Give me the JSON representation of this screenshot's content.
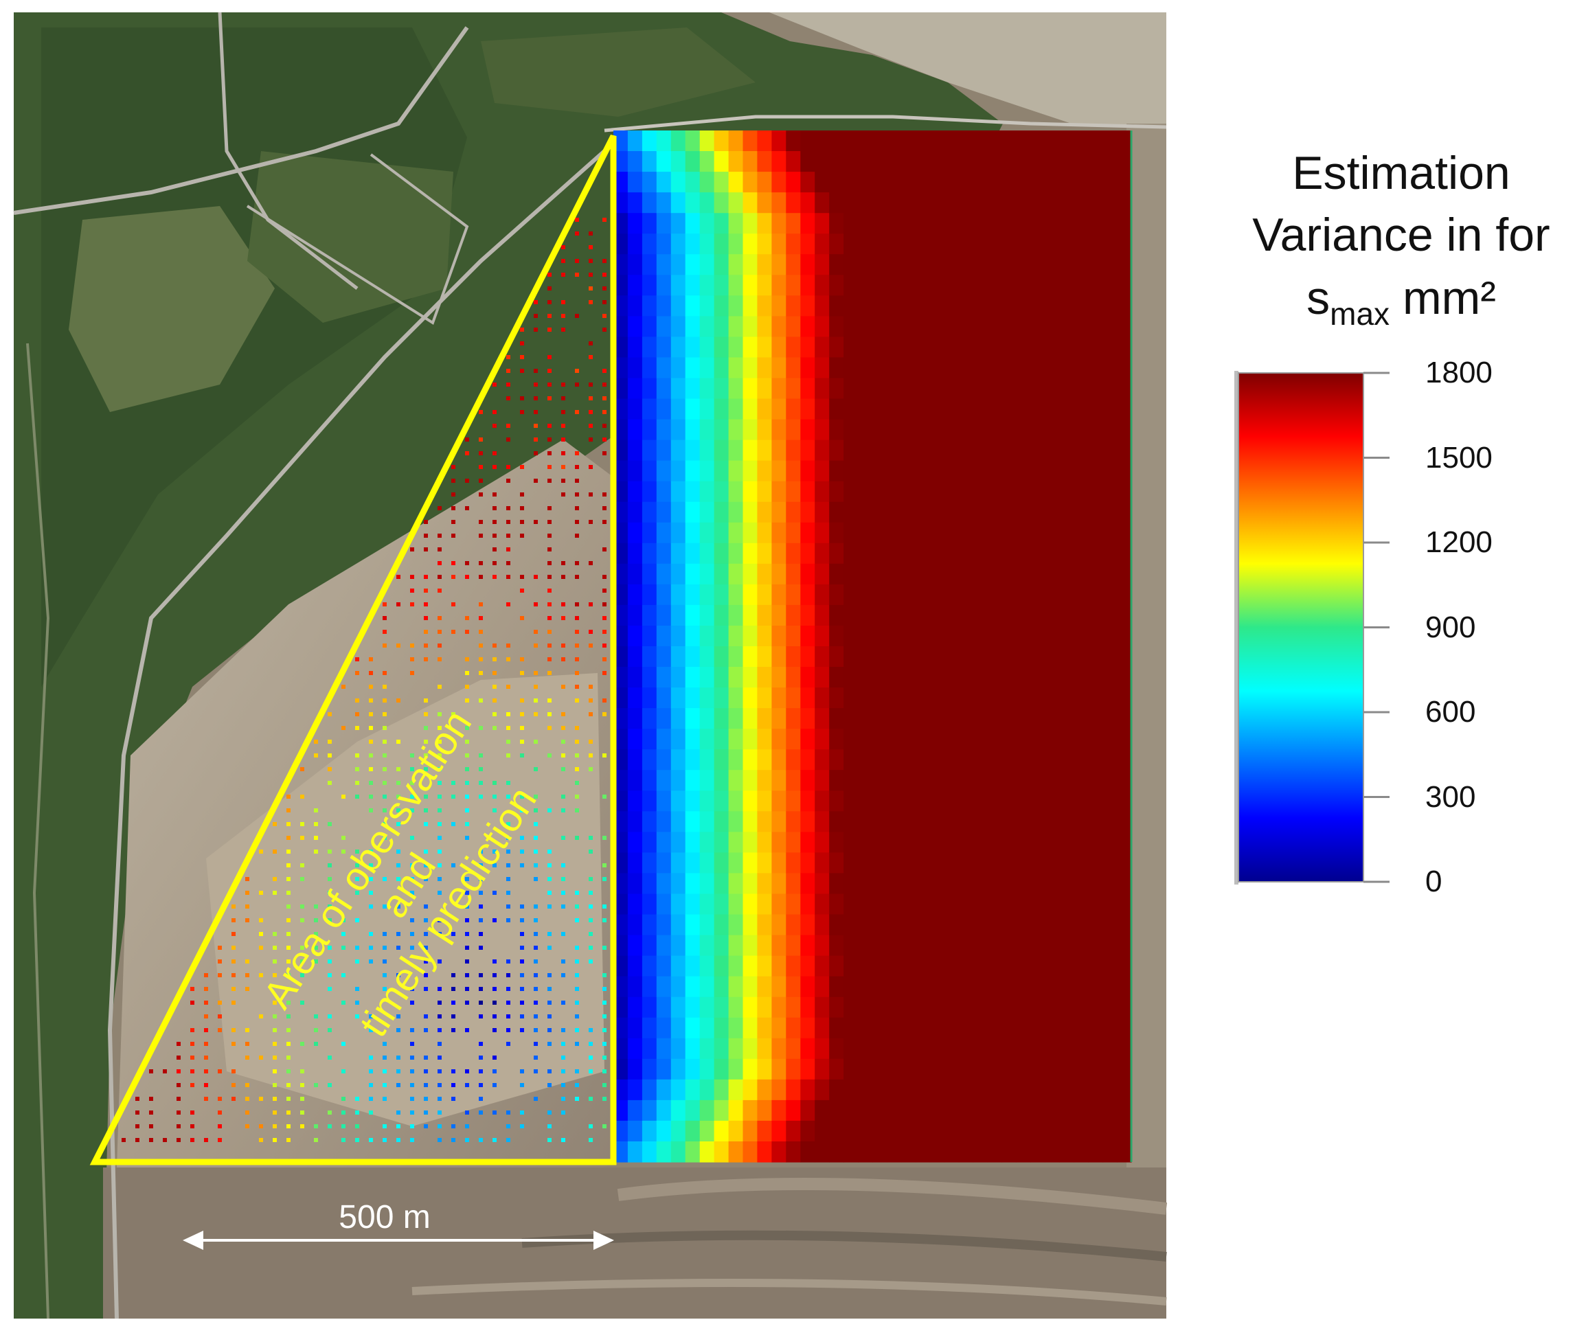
{
  "figure": {
    "annotation_line1": "Area of obersvation",
    "annotation_line2": "and",
    "annotation_line3": "timely prediction",
    "scale_bar_label": "500 m"
  },
  "legend": {
    "title_line1": "Estimation",
    "title_line2": "Variance in for",
    "title_line3_symbol": "s",
    "title_line3_subscript": "max",
    "title_line3_unit": "mm²",
    "ticks": [
      {
        "value": 1800,
        "label": "1800"
      },
      {
        "value": 1500,
        "label": "1500"
      },
      {
        "value": 1200,
        "label": "1200"
      },
      {
        "value": 900,
        "label": "900"
      },
      {
        "value": 600,
        "label": "600"
      },
      {
        "value": 300,
        "label": "300"
      },
      {
        "value": 0,
        "label": "0"
      }
    ],
    "range": [
      0,
      1800
    ],
    "colormap": "jet"
  },
  "colors": {
    "triangle_outline": "#ffff00",
    "annotation_text": "#ffff22",
    "scale_bar": "#ffffff",
    "colormap_stops": [
      "#00008f",
      "#0000ff",
      "#00ffff",
      "#ffff00",
      "#ff0000",
      "#800000"
    ]
  }
}
